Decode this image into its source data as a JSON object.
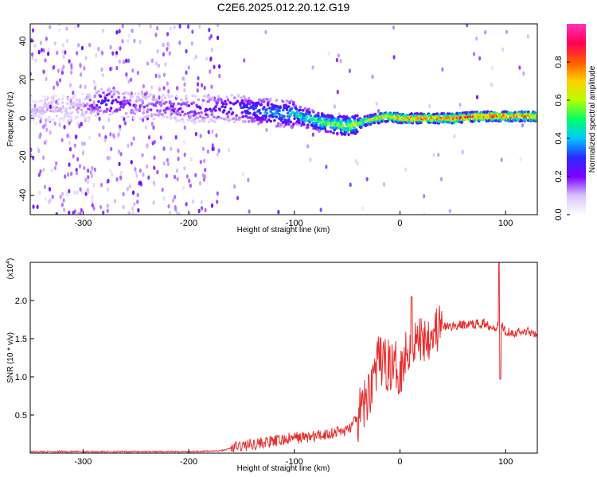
{
  "title": "C2E6.2025.012.20.12.G19",
  "chart_data": [
    {
      "type": "heatmap",
      "xlabel": "Height of straight line (km)",
      "ylabel": "Frequency (Hz)",
      "xlim": [
        -350,
        130
      ],
      "ylim": [
        -50,
        49
      ],
      "x_ticks": [
        -300,
        -200,
        -100,
        0,
        100
      ],
      "y_ticks": [
        -40,
        -20,
        0,
        20,
        40
      ],
      "colorbar": {
        "label": "Normalized spectral amplitude",
        "range": [
          0,
          1
        ],
        "ticks": [
          "0.0",
          "0.2",
          "0.4",
          "0.6",
          "0.8"
        ],
        "colormap": [
          "#ffffff",
          "#d9c2ff",
          "#7b00ff",
          "#2a2aff",
          "#00c8ff",
          "#00ff66",
          "#b6ff00",
          "#ffd000",
          "#ff5a00",
          "#ff0055",
          "#ff33bb"
        ]
      },
      "ridge": {
        "x": [
          -350,
          -300,
          -280,
          -250,
          -200,
          -150,
          -120,
          -100,
          -75,
          -50,
          -40,
          -30,
          -20,
          -10,
          0,
          25,
          50,
          75,
          100,
          130
        ],
        "freq": [
          4,
          6,
          9,
          6,
          5,
          5,
          3,
          2,
          -2,
          -4,
          -3,
          -1,
          0,
          1,
          0,
          0,
          0,
          1,
          1,
          1
        ],
        "amplitude": [
          0.12,
          0.15,
          0.35,
          0.2,
          0.25,
          0.35,
          0.45,
          0.5,
          0.6,
          0.7,
          0.75,
          0.8,
          0.8,
          0.85,
          0.9,
          0.95,
          0.95,
          0.97,
          0.98,
          0.95
        ]
      }
    },
    {
      "type": "line",
      "xlabel": "Height of straight line (km)",
      "ylabel": "SNR (10 * v/v)",
      "y_scale_label": "(x10",
      "y_scale_exp": "4",
      "xlim": [
        -350,
        130
      ],
      "ylim": [
        0,
        2.5
      ],
      "x_ticks": [
        -300,
        -200,
        -100,
        0,
        100
      ],
      "y_ticks": [
        "0.5",
        "1.0",
        "1.5",
        "2.0"
      ],
      "line_color": "#e8302f",
      "series": [
        {
          "x": [
            -350,
            -300,
            -250,
            -200,
            -170,
            -155,
            -140,
            -120,
            -100,
            -80,
            -60,
            -50,
            -40,
            -30,
            -25,
            -20,
            -10,
            0,
            10,
            20,
            30,
            40,
            60,
            80,
            90,
            95,
            100,
            110,
            120,
            130
          ],
          "y": [
            0.02,
            0.02,
            0.02,
            0.02,
            0.03,
            0.08,
            0.12,
            0.15,
            0.2,
            0.22,
            0.28,
            0.3,
            0.45,
            0.75,
            1.05,
            1.2,
            1.15,
            1.1,
            1.45,
            1.5,
            1.6,
            1.65,
            1.68,
            1.7,
            1.65,
            1.72,
            1.6,
            1.58,
            1.6,
            1.57
          ]
        }
      ],
      "peaks": [
        {
          "x": 11,
          "y": 2.05
        },
        {
          "x": 94,
          "y": 2.5
        },
        {
          "x": 95,
          "y": 0.97
        }
      ]
    }
  ]
}
